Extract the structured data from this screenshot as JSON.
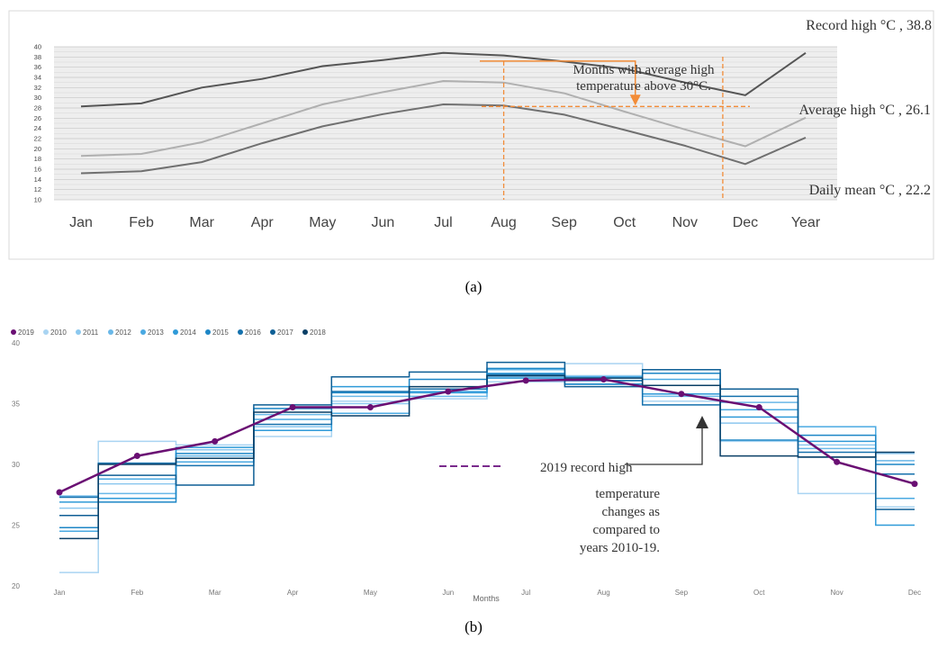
{
  "panel_a": {
    "label": "(a)",
    "chart_data": {
      "type": "line",
      "categories": [
        "Jan",
        "Feb",
        "Mar",
        "Apr",
        "May",
        "Jun",
        "Jul",
        "Aug",
        "Sep",
        "Oct",
        "Nov",
        "Dec",
        "Year"
      ],
      "ylim": [
        10,
        40
      ],
      "yticks": [
        "10",
        "12",
        "14",
        "16",
        "18",
        "20",
        "22",
        "24",
        "26",
        "28",
        "30",
        "32",
        "34",
        "36",
        "38",
        "40"
      ],
      "grid": true,
      "series": [
        {
          "name": "Record high °C , 38.8",
          "color": "#555555",
          "values": [
            28.3,
            28.9,
            32.0,
            33.7,
            36.2,
            37.4,
            38.8,
            38.3,
            37.1,
            35.7,
            33.0,
            30.5,
            38.8
          ]
        },
        {
          "name": "Average high °C , 26.1",
          "color": "#b0b0b0",
          "values": [
            18.6,
            19.0,
            21.3,
            25.0,
            28.7,
            31.1,
            33.3,
            33.0,
            30.9,
            27.3,
            23.8,
            20.5,
            26.1
          ]
        },
        {
          "name": "Daily mean °C , 22.2",
          "color": "#707070",
          "values": [
            15.2,
            15.6,
            17.4,
            21.1,
            24.4,
            26.8,
            28.7,
            28.5,
            26.7,
            23.7,
            20.6,
            17.0,
            22.2
          ]
        }
      ],
      "annotation": "Months with average high temperature above 30°C.",
      "annotation_lines": [
        "Months with average high",
        "temperature above 30°C."
      ]
    }
  },
  "panel_b": {
    "label": "(b)",
    "chart_data": {
      "type": "line",
      "xlabel": "Months",
      "categories": [
        "Jan",
        "Feb",
        "Mar",
        "Apr",
        "May",
        "Jun",
        "Jul",
        "Aug",
        "Sep",
        "Oct",
        "Nov",
        "Dec"
      ],
      "ylim": [
        20,
        40
      ],
      "yticks": [
        "20",
        "25",
        "30",
        "35",
        "40"
      ],
      "legend_position": "top-left",
      "legend": [
        "2019",
        "2010",
        "2011",
        "2012",
        "2013",
        "2014",
        "2015",
        "2016",
        "2017",
        "2018"
      ],
      "series": [
        {
          "name": "2019",
          "color": "#6a0f73",
          "values": [
            27.7,
            30.7,
            31.9,
            34.7,
            34.7,
            36.0,
            36.9,
            37.0,
            35.8,
            34.7,
            30.2,
            28.4
          ]
        },
        {
          "name": "2010",
          "color": "#a9d4f2",
          "values": [
            21.1,
            31.9,
            31.6,
            32.3,
            35.2,
            35.4,
            36.8,
            38.3,
            35.2,
            31.9,
            27.6,
            26.5
          ]
        },
        {
          "name": "2011",
          "color": "#8cc8ef",
          "values": [
            26.4,
            28.4,
            31.2,
            33.1,
            35.0,
            36.2,
            37.2,
            37.3,
            36.5,
            33.4,
            31.6,
            30.9
          ]
        },
        {
          "name": "2012",
          "color": "#6ab8e8",
          "values": [
            27.4,
            27.6,
            30.7,
            34.1,
            35.6,
            35.6,
            37.8,
            36.9,
            35.6,
            35.1,
            31.3,
            30.3
          ]
        },
        {
          "name": "2013",
          "color": "#4aa9e2",
          "values": [
            24.5,
            28.8,
            30.2,
            33.7,
            34.2,
            36.0,
            37.5,
            37.2,
            37.0,
            34.5,
            33.1,
            27.2
          ]
        },
        {
          "name": "2014",
          "color": "#2f9ad8",
          "values": [
            26.9,
            27.2,
            31.4,
            32.8,
            36.4,
            35.9,
            37.1,
            36.6,
            35.8,
            33.9,
            31.9,
            25.0
          ]
        },
        {
          "name": "2015",
          "color": "#1d86c6",
          "values": [
            24.8,
            26.9,
            30.9,
            34.6,
            35.9,
            37.0,
            37.9,
            36.6,
            37.5,
            32.0,
            32.4,
            30.0
          ]
        },
        {
          "name": "2016",
          "color": "#1571ad",
          "values": [
            27.3,
            30.1,
            29.9,
            33.3,
            36.0,
            36.2,
            37.4,
            36.9,
            34.9,
            35.6,
            31.0,
            29.2
          ]
        },
        {
          "name": "2017",
          "color": "#0f5f95",
          "values": [
            25.8,
            29.1,
            28.3,
            34.9,
            37.2,
            37.6,
            38.4,
            36.4,
            37.8,
            36.2,
            30.6,
            26.3
          ]
        },
        {
          "name": "2018",
          "color": "#0a3f66",
          "values": [
            23.9,
            30.0,
            30.5,
            34.3,
            34.0,
            36.4,
            37.3,
            37.1,
            36.5,
            30.7,
            30.6,
            31.0
          ]
        }
      ],
      "annotation_lines": [
        "2019 record high",
        "temperature",
        "changes as",
        "compared to",
        "years 2010-19."
      ]
    }
  }
}
